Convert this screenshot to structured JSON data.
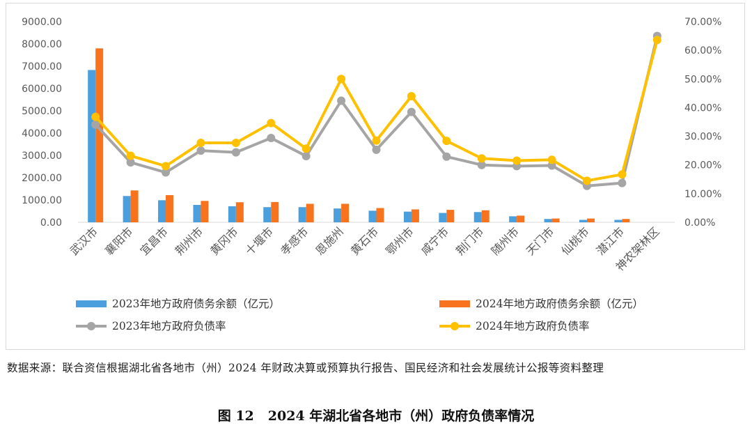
{
  "chart_data": {
    "type": "bar+line",
    "categories": [
      "武汉市",
      "襄阳市",
      "宜昌市",
      "荆州市",
      "黄冈市",
      "十堰市",
      "孝感市",
      "恩施州",
      "黄石市",
      "鄂州市",
      "咸宁市",
      "荆门市",
      "随州市",
      "天门市",
      "仙桃市",
      "潜江市",
      "神农架林区"
    ],
    "left_axis": {
      "min": 0,
      "max": 9000,
      "step": 1000,
      "tick_labels": [
        "0.00",
        "1000.00",
        "2000.00",
        "3000.00",
        "4000.00",
        "5000.00",
        "6000.00",
        "7000.00",
        "8000.00",
        "9000.00"
      ]
    },
    "right_axis": {
      "min": 0,
      "max": 0.7,
      "step": 0.1,
      "tick_labels": [
        "0.00%",
        "10.00%",
        "20.00%",
        "30.00%",
        "40.00%",
        "50.00%",
        "60.00%",
        "70.00%"
      ]
    },
    "bar_series": [
      {
        "name": "2023年地方政府债务余额（亿元）",
        "color": "#4a9fdc",
        "values": [
          6830,
          1180,
          990,
          780,
          720,
          680,
          680,
          620,
          520,
          480,
          420,
          460,
          270,
          150,
          110,
          110,
          0
        ]
      },
      {
        "name": "2024年地方政府债务余额（亿元）",
        "color": "#f7731d",
        "values": [
          7800,
          1430,
          1220,
          960,
          900,
          910,
          830,
          830,
          640,
          580,
          560,
          540,
          300,
          170,
          170,
          150,
          0
        ]
      }
    ],
    "line_series": [
      {
        "name": "2023年地方政府负债率",
        "color": "#a5a5a5",
        "values": [
          0.341,
          0.209,
          0.174,
          0.25,
          0.244,
          0.294,
          0.231,
          0.424,
          0.253,
          0.385,
          0.229,
          0.2,
          0.196,
          0.198,
          0.127,
          0.137,
          0.65
        ]
      },
      {
        "name": "2024年地方政府负债率",
        "color": "#ffc000",
        "values": [
          0.368,
          0.232,
          0.196,
          0.277,
          0.277,
          0.346,
          0.257,
          0.5,
          0.285,
          0.44,
          0.284,
          0.223,
          0.215,
          0.218,
          0.145,
          0.167,
          0.636
        ]
      }
    ],
    "grid": false,
    "legend_position": "bottom"
  },
  "source_note": "数据来源：联合资信根据湖北省各地市（州）2024 年财政决算或预算执行报告、国民经济和社会发展统计公报等资料整理",
  "caption": {
    "label": "图 12",
    "text": "2024 年湖北省各地市（州）政府负债率情况"
  }
}
